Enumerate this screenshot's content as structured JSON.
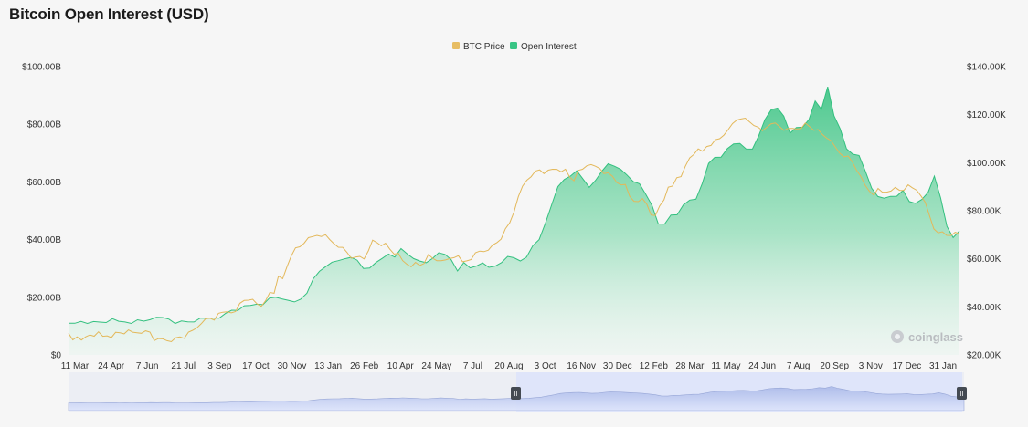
{
  "chart_data": {
    "type": "area",
    "title": "Bitcoin Open Interest (USD)",
    "legend": {
      "placement": "top-center",
      "items": [
        {
          "name": "BTC Price",
          "color": "#e7bd63"
        },
        {
          "name": "Open Interest",
          "color": "#38c585"
        }
      ]
    },
    "x_ticks": [
      "11 Mar",
      "24 Apr",
      "7 Jun",
      "21 Jul",
      "3 Sep",
      "17 Oct",
      "30 Nov",
      "13 Jan",
      "26 Feb",
      "10 Apr",
      "24 May",
      "7 Jul",
      "20 Aug",
      "3 Oct",
      "16 Nov",
      "30 Dec",
      "12 Feb",
      "28 Mar",
      "11 May",
      "24 Jun",
      "7 Aug",
      "20 Sep",
      "3 Nov",
      "17 Dec",
      "31 Jan"
    ],
    "y_left": {
      "label": "",
      "ticks": [
        "$0",
        "$20.00B",
        "$40.00B",
        "$60.00B",
        "$80.00B",
        "$100.00B"
      ],
      "min": 0,
      "max": 100
    },
    "y_right": {
      "label": "",
      "ticks": [
        "$20.00K",
        "$40.00K",
        "$60.00K",
        "$80.00K",
        "$100.00K",
        "$120.00K",
        "$140.00K"
      ],
      "min": 20,
      "max": 140
    },
    "grid": false,
    "series": [
      {
        "name": "Open Interest",
        "unit": "B USD",
        "values": [
          11,
          10.8,
          11.8,
          11.5,
          11.2,
          11.4,
          11.6,
          12,
          11.5,
          11.6,
          11.5,
          11.8,
          11.7,
          12.6,
          12.5,
          12.8,
          12.6,
          11.5,
          11.4,
          11.5,
          11.8,
          12.2,
          12.5,
          13,
          13.3,
          14,
          15.5,
          15.8,
          16.5,
          17,
          17.8,
          18,
          19.3,
          20,
          19.8,
          18.4,
          18.2,
          19.5,
          22,
          26,
          29,
          31,
          31.6,
          32.5,
          33.5,
          34.4,
          32.5,
          30,
          30.5,
          31.5,
          33.3,
          35.2,
          34.5,
          36.5,
          35,
          33.8,
          32,
          31.8,
          33.6,
          36,
          34.5,
          33,
          29.5,
          31.5,
          30,
          31,
          32.5,
          30,
          30.8,
          32.4,
          33.6,
          33.5,
          32.8,
          34.5,
          37.5,
          40,
          46,
          51.5,
          58.2,
          61,
          62.6,
          63.5,
          61,
          58.5,
          60,
          63.5,
          66.5,
          66,
          64,
          62.4,
          60.5,
          58.8,
          55.5,
          52,
          46,
          45,
          48.5,
          49,
          51.5,
          53.5,
          54.2,
          60,
          66,
          68.5,
          69,
          71,
          73,
          73.5,
          72,
          71,
          76,
          82,
          84.5,
          85.4,
          83,
          77.5,
          78.5,
          79,
          82,
          87.5,
          85,
          93.2,
          83.5,
          78,
          71.5,
          70,
          68.6,
          63.5,
          58,
          55.5,
          54,
          55,
          55.4,
          56.5,
          53,
          52.8,
          54.5,
          56,
          62,
          54.8,
          44,
          40.5,
          43
        ]
      },
      {
        "name": "BTC Price",
        "unit": "K USD",
        "values": [
          29,
          26,
          27.8,
          27,
          27,
          28.3,
          28.3,
          28.8,
          27.5,
          28.2,
          28,
          28.9,
          29.2,
          29.3,
          29.6,
          29.2,
          29.5,
          29.8,
          29.5,
          29.5,
          26.5,
          26,
          26.4,
          26.2,
          26.3,
          26.6,
          27.5,
          27.4,
          28.7,
          30,
          31.6,
          33.8,
          34.5,
          35.3,
          35,
          36.5,
          37.5,
          38.2,
          38.3,
          37.5,
          41.5,
          43.2,
          42,
          42.9,
          41.5,
          41,
          42,
          46,
          46.2,
          52,
          51.5,
          57,
          62,
          64,
          65,
          67,
          68,
          69,
          70,
          70.1,
          69.5,
          68,
          66.8,
          64,
          64.5,
          63,
          61,
          60.2,
          61,
          60.5,
          62.5,
          67.5,
          67,
          66.2,
          66,
          64,
          62.5,
          61.5,
          59,
          58,
          57.5,
          58,
          57.2,
          58.6,
          61,
          60,
          59.5,
          60,
          59,
          60.1,
          61,
          60.5,
          58.5,
          59.4,
          60.5,
          62,
          63.2,
          63.5,
          62.8,
          65.5,
          67,
          69,
          72,
          75,
          80,
          85,
          90,
          93,
          95,
          96,
          97,
          96,
          96.1,
          97,
          97.5,
          97,
          96.8,
          94,
          93,
          96,
          97,
          99,
          100,
          98,
          97.6,
          96,
          95,
          94.1,
          92,
          91.6,
          90.4,
          86,
          84.5,
          83,
          84.8,
          83,
          79,
          77.5,
          82,
          85,
          89,
          90,
          94,
          95,
          98,
          102,
          104,
          105,
          104.5,
          107,
          108,
          109,
          110,
          112,
          113,
          116,
          118,
          119,
          118,
          117,
          116,
          114,
          113,
          115,
          117,
          116,
          115,
          114,
          113.5,
          114,
          114.3,
          115,
          116,
          115,
          114,
          113,
          111.5,
          110.5,
          110,
          106,
          104,
          103,
          102,
          100,
          97,
          95,
          90,
          88,
          87,
          88.5,
          87.5,
          88,
          89,
          89.2,
          88.5,
          89,
          90,
          89.3,
          88.8,
          87,
          83,
          78,
          73,
          70,
          71,
          70,
          70.5,
          70.5,
          70.4
        ]
      }
    ]
  },
  "navigator": {
    "left_handle": "II",
    "right_handle": "II"
  },
  "watermark": "coinglass"
}
